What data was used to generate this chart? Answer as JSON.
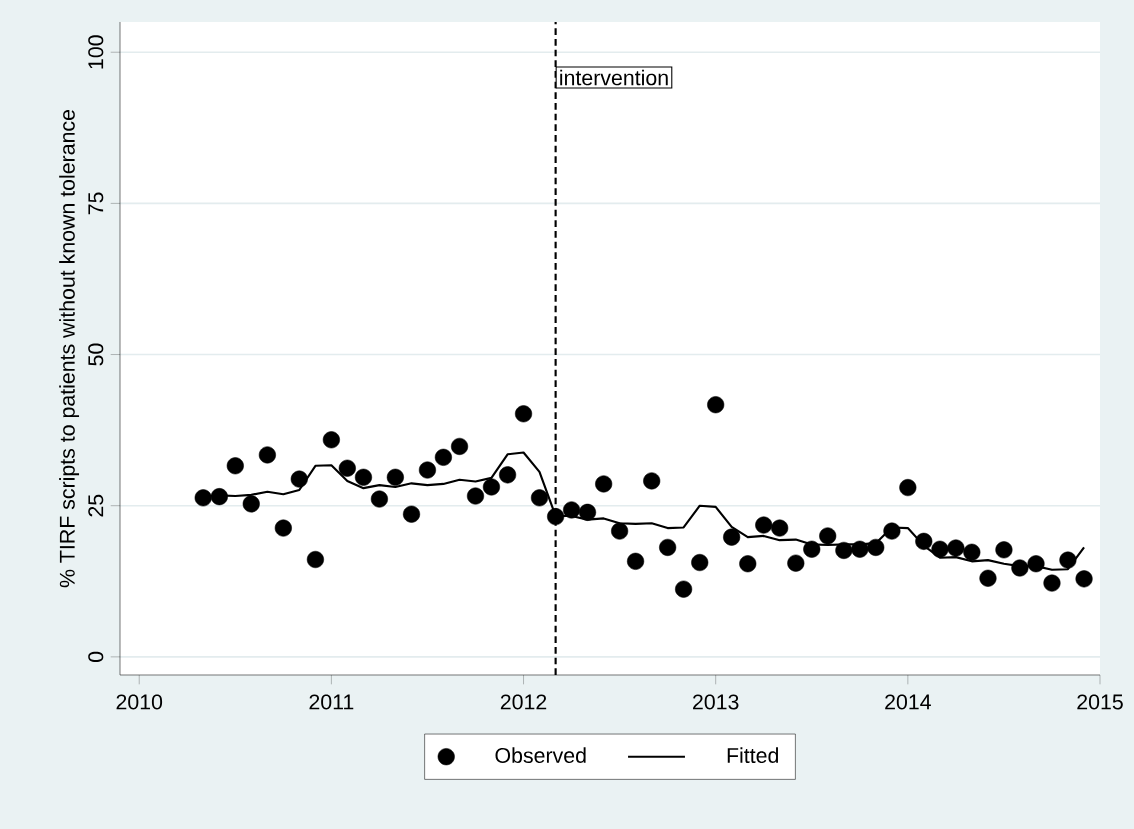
{
  "chart_data": {
    "type": "scatter",
    "ylabel": "% TIRF scripts to patients without known tolerance",
    "x": [
      2010.333,
      2010.417,
      2010.5,
      2010.583,
      2010.667,
      2010.75,
      2010.833,
      2010.917,
      2011.0,
      2011.083,
      2011.167,
      2011.25,
      2011.333,
      2011.417,
      2011.5,
      2011.583,
      2011.667,
      2011.75,
      2011.833,
      2011.917,
      2012.0,
      2012.083,
      2012.167,
      2012.25,
      2012.333,
      2012.417,
      2012.5,
      2012.583,
      2012.667,
      2012.75,
      2012.833,
      2012.917,
      2013.0,
      2013.083,
      2013.167,
      2013.25,
      2013.333,
      2013.417,
      2013.5,
      2013.583,
      2013.667,
      2013.75,
      2013.833,
      2013.917,
      2014.0,
      2014.083,
      2014.167,
      2014.25,
      2014.333,
      2014.417,
      2014.5,
      2014.583,
      2014.667,
      2014.75,
      2014.833,
      2014.917
    ],
    "series": [
      {
        "name": "Observed",
        "marker": "circle",
        "color": "#000000",
        "values": [
          26.3,
          26.5,
          31.6,
          25.3,
          33.4,
          21.3,
          29.4,
          16.1,
          35.9,
          31.2,
          29.7,
          26.1,
          29.7,
          23.6,
          30.9,
          33.0,
          34.8,
          26.6,
          28.1,
          30.1,
          40.2,
          26.3,
          23.2,
          24.3,
          23.9,
          28.6,
          20.8,
          15.8,
          29.1,
          18.1,
          11.2,
          15.6,
          41.7,
          19.8,
          15.4,
          21.8,
          21.3,
          15.5,
          17.8,
          20.0,
          17.6,
          17.8,
          18.1,
          20.8,
          28.0,
          19.1,
          17.8,
          18.0,
          17.3,
          13.0,
          17.7,
          14.7,
          15.4,
          12.2,
          16.0,
          12.9
        ]
      },
      {
        "name": "Fitted",
        "type": "line",
        "marker": "none",
        "line_style": "solid",
        "color": "#000000",
        "values": [
          26.5,
          26.7,
          26.6,
          26.8,
          27.3,
          26.9,
          27.6,
          31.6,
          31.7,
          29.1,
          27.9,
          28.4,
          28.1,
          28.7,
          28.4,
          28.6,
          29.3,
          29.0,
          29.6,
          33.5,
          33.8,
          30.6,
          23.3,
          23.3,
          22.7,
          22.9,
          22.1,
          22.0,
          22.1,
          21.3,
          21.4,
          25.0,
          24.8,
          21.5,
          19.8,
          20.0,
          19.3,
          19.4,
          18.6,
          18.5,
          18.6,
          18.6,
          18.8,
          21.4,
          21.3,
          18.4,
          16.4,
          16.5,
          15.8,
          16.0,
          15.4,
          15.0,
          15.0,
          14.4,
          14.5,
          18.1
        ]
      }
    ],
    "xlim": [
      2009.9,
      2015
    ],
    "xticks": [
      2010,
      2011,
      2012,
      2013,
      2014,
      2015
    ],
    "ylim": [
      -3,
      105
    ],
    "yticks": [
      0,
      25,
      50,
      75,
      100
    ],
    "ref_lines": [
      {
        "axis": "x",
        "value": 2012.167,
        "label": "intervention",
        "color": "#000000",
        "line_style": "dashed"
      }
    ],
    "grid": "y",
    "legend": "bottom"
  }
}
